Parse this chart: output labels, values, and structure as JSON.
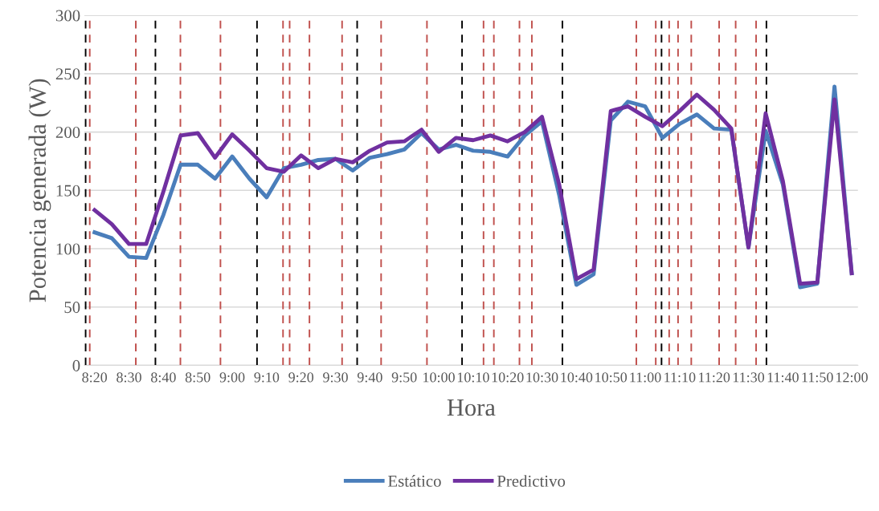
{
  "chart_data": {
    "type": "line",
    "xlabel": "Hora",
    "ylabel": "Potencia generada (W)",
    "x": [
      8.3333,
      8.4167,
      8.5,
      8.5833,
      8.6667,
      8.75,
      8.8333,
      8.9167,
      9.0,
      9.0833,
      9.1667,
      9.25,
      9.3333,
      9.4167,
      9.5,
      9.5833,
      9.6667,
      9.75,
      9.8333,
      9.9167,
      10.0,
      10.0833,
      10.1667,
      10.25,
      10.3333,
      10.4167,
      10.5,
      10.5833,
      10.6667,
      10.75,
      10.8333,
      10.9167,
      11.0,
      11.0833,
      11.1667,
      11.25,
      11.3333,
      11.4167,
      11.5,
      11.5833,
      11.6667,
      11.75,
      11.8333,
      11.9167,
      12.0
    ],
    "series": [
      {
        "name": "Estático",
        "color": "#4a7ebb",
        "values": [
          114,
          109,
          93,
          92,
          129,
          172,
          172,
          160,
          179,
          160,
          144,
          169,
          172,
          176,
          177,
          167,
          178,
          181,
          185,
          199,
          185,
          189,
          184,
          183,
          179,
          197,
          209,
          146,
          69,
          78,
          210,
          226,
          222,
          195,
          207,
          215,
          203,
          202,
          101,
          201,
          155,
          67,
          70,
          239,
          79
        ]
      },
      {
        "name": "Predictivo",
        "color": "#7030a0",
        "values": [
          133,
          121,
          104,
          104,
          149,
          197,
          199,
          178,
          198,
          184,
          169,
          166,
          180,
          169,
          177,
          174,
          184,
          191,
          192,
          202,
          183,
          195,
          193,
          197,
          192,
          200,
          213,
          155,
          74,
          82,
          218,
          222,
          213,
          205,
          218,
          232,
          219,
          203,
          101,
          216,
          158,
          70,
          71,
          228,
          79
        ]
      }
    ],
    "xlim": [
      8.284,
      12.03
    ],
    "ylim": [
      0,
      300
    ],
    "xticks": [
      {
        "value": 8.3333,
        "label": "8:20"
      },
      {
        "value": 8.5,
        "label": "8:30"
      },
      {
        "value": 8.6667,
        "label": "8:40"
      },
      {
        "value": 8.8333,
        "label": "8:50"
      },
      {
        "value": 9.0,
        "label": "9:00"
      },
      {
        "value": 9.1667,
        "label": "9:10"
      },
      {
        "value": 9.3333,
        "label": "9:20"
      },
      {
        "value": 9.5,
        "label": "9:30"
      },
      {
        "value": 9.6667,
        "label": "9:40"
      },
      {
        "value": 9.8333,
        "label": "9:50"
      },
      {
        "value": 10.0,
        "label": "10:00"
      },
      {
        "value": 10.1667,
        "label": "10:10"
      },
      {
        "value": 10.3333,
        "label": "10:20"
      },
      {
        "value": 10.5,
        "label": "10:30"
      },
      {
        "value": 10.6667,
        "label": "10:40"
      },
      {
        "value": 10.8333,
        "label": "10:50"
      },
      {
        "value": 11.0,
        "label": "11:00"
      },
      {
        "value": 11.1667,
        "label": "11:10"
      },
      {
        "value": 11.3333,
        "label": "11:20"
      },
      {
        "value": 11.5,
        "label": "11:30"
      },
      {
        "value": 11.6667,
        "label": "11:40"
      },
      {
        "value": 11.8333,
        "label": "11:50"
      },
      {
        "value": 12.0,
        "label": "12:00"
      }
    ],
    "yticks": [
      0,
      50,
      100,
      150,
      200,
      250,
      300
    ],
    "grid": "y",
    "legend": "bottom",
    "marker": "none",
    "line_style": "solid",
    "ref_lines": [
      {
        "axis": "x",
        "value": 8.29,
        "color": "#000000",
        "line_style": "dashed"
      },
      {
        "axis": "x",
        "value": 8.31,
        "color": "#c0504d",
        "line_style": "dashed"
      },
      {
        "axis": "x",
        "value": 8.533,
        "color": "#c0504d",
        "line_style": "dashed"
      },
      {
        "axis": "x",
        "value": 8.628,
        "color": "#000000",
        "line_style": "dashed"
      },
      {
        "axis": "x",
        "value": 8.749,
        "color": "#c0504d",
        "line_style": "dashed"
      },
      {
        "axis": "x",
        "value": 8.943,
        "color": "#c0504d",
        "line_style": "dashed"
      },
      {
        "axis": "x",
        "value": 9.12,
        "color": "#000000",
        "line_style": "dashed"
      },
      {
        "axis": "x",
        "value": 9.246,
        "color": "#c0504d",
        "line_style": "dashed"
      },
      {
        "axis": "x",
        "value": 9.278,
        "color": "#c0504d",
        "line_style": "dashed"
      },
      {
        "axis": "x",
        "value": 9.374,
        "color": "#c0504d",
        "line_style": "dashed"
      },
      {
        "axis": "x",
        "value": 9.532,
        "color": "#c0504d",
        "line_style": "dashed"
      },
      {
        "axis": "x",
        "value": 9.605,
        "color": "#000000",
        "line_style": "dashed"
      },
      {
        "axis": "x",
        "value": 9.721,
        "color": "#c0504d",
        "line_style": "dashed"
      },
      {
        "axis": "x",
        "value": 9.943,
        "color": "#c0504d",
        "line_style": "dashed"
      },
      {
        "axis": "x",
        "value": 10.113,
        "color": "#000000",
        "line_style": "dashed"
      },
      {
        "axis": "x",
        "value": 10.217,
        "color": "#c0504d",
        "line_style": "dashed"
      },
      {
        "axis": "x",
        "value": 10.267,
        "color": "#c0504d",
        "line_style": "dashed"
      },
      {
        "axis": "x",
        "value": 10.391,
        "color": "#c0504d",
        "line_style": "dashed"
      },
      {
        "axis": "x",
        "value": 10.451,
        "color": "#c0504d",
        "line_style": "dashed"
      },
      {
        "axis": "x",
        "value": 10.599,
        "color": "#000000",
        "line_style": "dashed"
      },
      {
        "axis": "x",
        "value": 10.957,
        "color": "#c0504d",
        "line_style": "dashed"
      },
      {
        "axis": "x",
        "value": 11.051,
        "color": "#c0504d",
        "line_style": "dashed"
      },
      {
        "axis": "x",
        "value": 11.079,
        "color": "#000000",
        "line_style": "dashed"
      },
      {
        "axis": "x",
        "value": 11.116,
        "color": "#c0504d",
        "line_style": "dashed"
      },
      {
        "axis": "x",
        "value": 11.159,
        "color": "#c0504d",
        "line_style": "dashed"
      },
      {
        "axis": "x",
        "value": 11.223,
        "color": "#c0504d",
        "line_style": "dashed"
      },
      {
        "axis": "x",
        "value": 11.358,
        "color": "#c0504d",
        "line_style": "dashed"
      },
      {
        "axis": "x",
        "value": 11.438,
        "color": "#c0504d",
        "line_style": "dashed"
      },
      {
        "axis": "x",
        "value": 11.537,
        "color": "#c0504d",
        "line_style": "dashed"
      },
      {
        "axis": "x",
        "value": 11.587,
        "color": "#000000",
        "line_style": "dashed"
      }
    ]
  }
}
